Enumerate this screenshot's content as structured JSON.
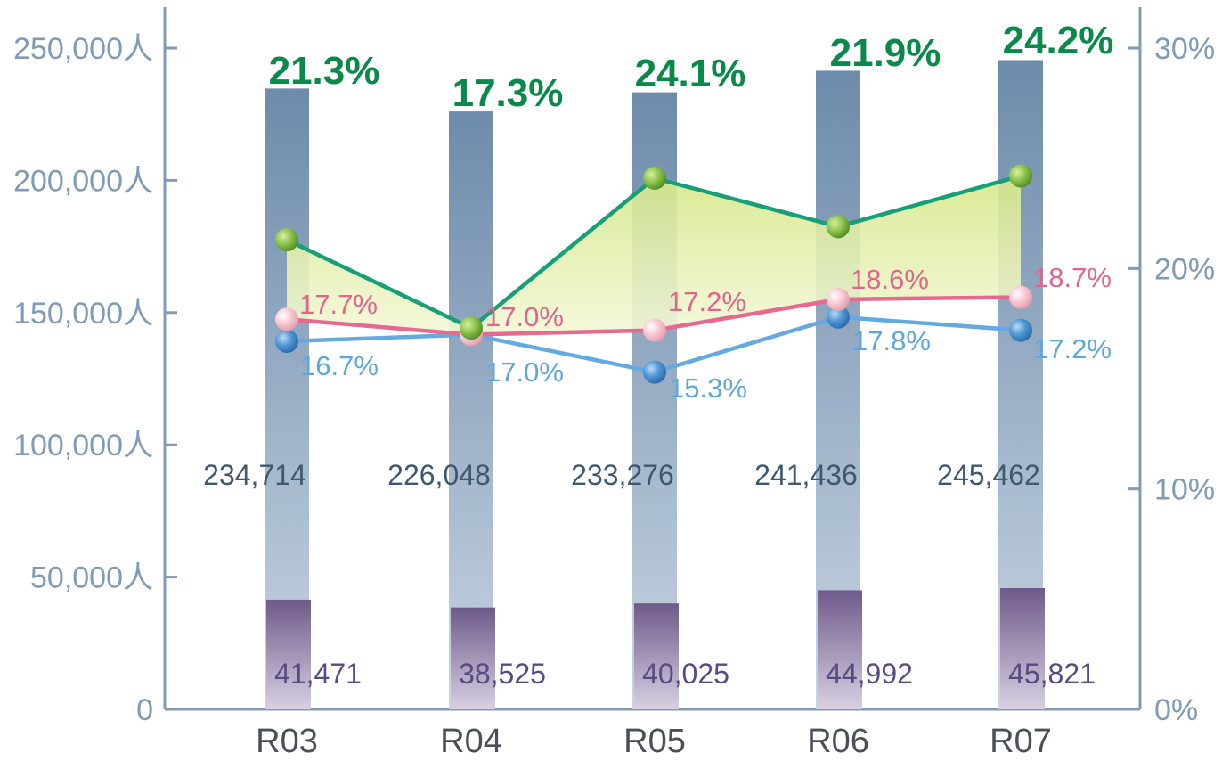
{
  "chart_data": {
    "type": "bar",
    "categories": [
      "R03",
      "R04",
      "R05",
      "R06",
      "R07"
    ],
    "left_axis": {
      "ylim": [
        0,
        250000
      ],
      "ticks": [
        {
          "value": 0,
          "label": "0"
        },
        {
          "value": 50000,
          "label": "50,000人"
        },
        {
          "value": 100000,
          "label": "100,000人"
        },
        {
          "value": 150000,
          "label": "150,000人"
        },
        {
          "value": 200000,
          "label": "200,000人"
        },
        {
          "value": 250000,
          "label": "250,000人"
        }
      ]
    },
    "right_axis": {
      "ylim": [
        0,
        30
      ],
      "ticks": [
        {
          "value": 0,
          "label": "0%"
        },
        {
          "value": 10,
          "label": "10%"
        },
        {
          "value": 20,
          "label": "20%"
        },
        {
          "value": 30,
          "label": "30%"
        }
      ]
    },
    "bar_series": [
      {
        "values": [
          234714,
          226048,
          233276,
          241436,
          245462
        ],
        "labels": [
          "234,714",
          "226,048",
          "233,276",
          "241,436",
          "245,462"
        ],
        "color": "#7390b0"
      },
      {
        "values": [
          41471,
          38525,
          40025,
          44992,
          45821
        ],
        "labels": [
          "41,471",
          "38,525",
          "40,025",
          "44,992",
          "45,821"
        ],
        "color": "#76608f"
      }
    ],
    "line_series": [
      {
        "values": [
          21.3,
          17.3,
          24.1,
          21.9,
          24.2
        ],
        "labels": [
          "21.3%",
          "17.3%",
          "24.1%",
          "21.9%",
          "24.2%"
        ],
        "color": "#169f78"
      },
      {
        "values": [
          17.7,
          17.0,
          17.2,
          18.6,
          18.7
        ],
        "labels": [
          "17.7%",
          "17.0%",
          "17.2%",
          "18.6%",
          "18.7%"
        ],
        "color": "#e8688f"
      },
      {
        "values": [
          16.7,
          17.0,
          15.3,
          17.8,
          17.2
        ],
        "labels": [
          "16.7%",
          "17.0%",
          "15.3%",
          "17.8%",
          "17.2%"
        ],
        "color": "#62aadf"
      }
    ]
  }
}
